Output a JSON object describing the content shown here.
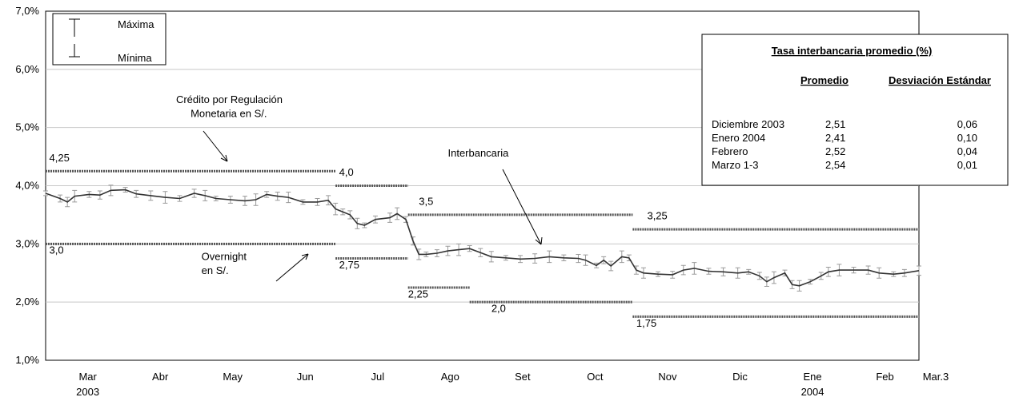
{
  "chart_data": {
    "type": "line",
    "ylim": [
      1.0,
      7.0
    ],
    "y_ticks": [
      "1,0%",
      "2,0%",
      "3,0%",
      "4,0%",
      "5,0%",
      "6,0%",
      "7,0%"
    ],
    "x_ticks": [
      {
        "label": "Mar",
        "label2": "2003",
        "x": 0
      },
      {
        "label": "Abr",
        "x": 1
      },
      {
        "label": "May",
        "x": 2
      },
      {
        "label": "Jun",
        "x": 3
      },
      {
        "label": "Jul",
        "x": 4
      },
      {
        "label": "Ago",
        "x": 5
      },
      {
        "label": "Set",
        "x": 6
      },
      {
        "label": "Oct",
        "x": 7
      },
      {
        "label": "Nov",
        "x": 8
      },
      {
        "label": "Dic",
        "x": 9
      },
      {
        "label": "Ene",
        "label2": "2004",
        "x": 10
      },
      {
        "label": "Feb",
        "x": 11
      },
      {
        "label": "Mar.3",
        "x": 11.7
      }
    ],
    "x_range": [
      -0.25,
      11.8
    ],
    "grid": "horizontal",
    "legend": {
      "max_label": "Máxima",
      "min_label": "Mínima"
    },
    "corridor_upper": {
      "label": "Crédito por Regulación Monetaria en S/.",
      "segments": [
        {
          "x0": -0.25,
          "x1": 3.75,
          "y": 4.25
        },
        {
          "x0": 3.75,
          "x1": 4.75,
          "y": 4.0
        },
        {
          "x0": 4.75,
          "x1": 7.85,
          "y": 3.5
        },
        {
          "x0": 7.85,
          "x1": 11.8,
          "y": 3.25
        }
      ],
      "value_labels": [
        {
          "text": "4,25",
          "x": -0.2,
          "y": 4.42
        },
        {
          "text": "4,0",
          "x": 3.8,
          "y": 4.17
        },
        {
          "text": "3,5",
          "x": 4.9,
          "y": 3.67
        },
        {
          "text": "3,25",
          "x": 8.05,
          "y": 3.42
        }
      ]
    },
    "corridor_lower": {
      "label": "Overnight en S/.",
      "segments": [
        {
          "x0": -0.25,
          "x1": 3.75,
          "y": 3.0
        },
        {
          "x0": 3.75,
          "x1": 4.75,
          "y": 2.75
        },
        {
          "x0": 4.75,
          "x1": 5.6,
          "y": 2.25
        },
        {
          "x0": 5.6,
          "x1": 7.85,
          "y": 2.0
        },
        {
          "x0": 7.85,
          "x1": 11.8,
          "y": 1.75
        }
      ],
      "value_labels": [
        {
          "text": "3,0",
          "x": -0.2,
          "y": 2.83
        },
        {
          "text": "2,75",
          "x": 3.8,
          "y": 2.58
        },
        {
          "text": "2,25",
          "x": 4.75,
          "y": 2.08
        },
        {
          "text": "2,0",
          "x": 5.9,
          "y": 1.83
        },
        {
          "text": "1,75",
          "x": 7.9,
          "y": 1.58
        }
      ]
    },
    "interbank": {
      "name": "Interbancaria",
      "points": [
        [
          -0.25,
          3.87
        ],
        [
          -0.05,
          3.78
        ],
        [
          0.05,
          3.72
        ],
        [
          0.15,
          3.82
        ],
        [
          0.35,
          3.85
        ],
        [
          0.5,
          3.84
        ],
        [
          0.65,
          3.92
        ],
        [
          0.85,
          3.93
        ],
        [
          1.0,
          3.86
        ],
        [
          1.2,
          3.83
        ],
        [
          1.4,
          3.8
        ],
        [
          1.6,
          3.78
        ],
        [
          1.8,
          3.87
        ],
        [
          1.95,
          3.83
        ],
        [
          2.1,
          3.78
        ],
        [
          2.3,
          3.76
        ],
        [
          2.5,
          3.74
        ],
        [
          2.65,
          3.76
        ],
        [
          2.8,
          3.85
        ],
        [
          2.95,
          3.82
        ],
        [
          3.1,
          3.8
        ],
        [
          3.3,
          3.72
        ],
        [
          3.5,
          3.72
        ],
        [
          3.65,
          3.75
        ],
        [
          3.75,
          3.6
        ],
        [
          3.85,
          3.55
        ],
        [
          3.95,
          3.5
        ],
        [
          4.05,
          3.35
        ],
        [
          4.15,
          3.32
        ],
        [
          4.3,
          3.42
        ],
        [
          4.5,
          3.45
        ],
        [
          4.6,
          3.52
        ],
        [
          4.72,
          3.42
        ],
        [
          4.82,
          3.05
        ],
        [
          4.9,
          2.82
        ],
        [
          5.0,
          2.82
        ],
        [
          5.15,
          2.84
        ],
        [
          5.3,
          2.88
        ],
        [
          5.45,
          2.9
        ],
        [
          5.6,
          2.92
        ],
        [
          5.75,
          2.85
        ],
        [
          5.9,
          2.78
        ],
        [
          6.1,
          2.76
        ],
        [
          6.3,
          2.74
        ],
        [
          6.5,
          2.75
        ],
        [
          6.7,
          2.78
        ],
        [
          6.9,
          2.76
        ],
        [
          7.1,
          2.75
        ],
        [
          7.2,
          2.72
        ],
        [
          7.35,
          2.63
        ],
        [
          7.45,
          2.72
        ],
        [
          7.55,
          2.62
        ],
        [
          7.7,
          2.78
        ],
        [
          7.8,
          2.76
        ],
        [
          7.9,
          2.55
        ],
        [
          8.0,
          2.5
        ],
        [
          8.2,
          2.48
        ],
        [
          8.4,
          2.47
        ],
        [
          8.55,
          2.55
        ],
        [
          8.7,
          2.58
        ],
        [
          8.9,
          2.53
        ],
        [
          9.1,
          2.52
        ],
        [
          9.3,
          2.5
        ],
        [
          9.45,
          2.52
        ],
        [
          9.6,
          2.45
        ],
        [
          9.7,
          2.35
        ],
        [
          9.8,
          2.42
        ],
        [
          9.95,
          2.5
        ],
        [
          10.05,
          2.3
        ],
        [
          10.15,
          2.28
        ],
        [
          10.3,
          2.35
        ],
        [
          10.45,
          2.45
        ],
        [
          10.55,
          2.52
        ],
        [
          10.7,
          2.55
        ],
        [
          10.9,
          2.55
        ],
        [
          11.1,
          2.55
        ],
        [
          11.25,
          2.5
        ],
        [
          11.45,
          2.48
        ],
        [
          11.6,
          2.5
        ],
        [
          11.8,
          2.54
        ]
      ]
    },
    "annotations": [
      {
        "text": "Crédito por Regulación",
        "x": 1.55,
        "y": 5.42
      },
      {
        "text": "Monetaria en S/.",
        "x": 1.75,
        "y": 5.18
      },
      {
        "text": "Interbancaria",
        "x": 5.3,
        "y": 4.5
      },
      {
        "text": "Overnight",
        "x": 1.9,
        "y": 2.72
      },
      {
        "text": "en S/.",
        "x": 1.9,
        "y": 2.48
      }
    ],
    "table": {
      "title": "Tasa interbancaria promedio (%)",
      "headers": [
        "Promedio",
        "Desviación Estándar"
      ],
      "rows": [
        [
          "Diciembre 2003",
          "2,51",
          "0,06"
        ],
        [
          "Enero 2004",
          "2,41",
          "0,10"
        ],
        [
          "Febrero",
          "2,52",
          "0,04"
        ],
        [
          "Marzo 1-3",
          "2,54",
          "0,01"
        ]
      ]
    }
  }
}
